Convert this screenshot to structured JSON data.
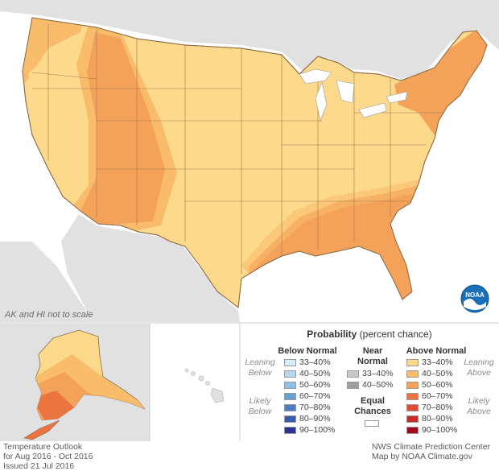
{
  "map_note": "AK and HI not to scale",
  "footer_left": [
    "Temperature Outlook",
    "for Aug 2016 - Oct 2016",
    "Issued 21 Jul 2016"
  ],
  "footer_right": [
    "NWS Climate Prediction Center",
    "Map by NOAA Climate.gov"
  ],
  "logo_text": "NOAA",
  "legend": {
    "title_bold": "Probability",
    "title_rest": " (percent chance)",
    "below_normal": {
      "heading": "Below Normal",
      "leaning": [
        "Leaning",
        "Below"
      ],
      "likely": [
        "Likely",
        "Below"
      ],
      "items": [
        {
          "label": "33–40%",
          "color": "#d7ecf8"
        },
        {
          "label": "40–50%",
          "color": "#b8d8ef"
        },
        {
          "label": "50–60%",
          "color": "#8fbfe3"
        },
        {
          "label": "60–70%",
          "color": "#6a9fd4"
        },
        {
          "label": "70–80%",
          "color": "#4f7ec2"
        },
        {
          "label": "80–90%",
          "color": "#3a5aab"
        },
        {
          "label": "90–100%",
          "color": "#2a3490"
        }
      ]
    },
    "near_normal": {
      "heading": [
        "Near",
        "Normal"
      ],
      "items": [
        {
          "label": "33–40%",
          "color": "#c8c8c8"
        },
        {
          "label": "40–50%",
          "color": "#9e9e9e"
        }
      ]
    },
    "equal_chances": {
      "label": [
        "Equal",
        "Chances"
      ],
      "color": "#ffffff"
    },
    "above_normal": {
      "heading": "Above Normal",
      "leaning": [
        "Leaning",
        "Above"
      ],
      "likely": [
        "Likely",
        "Above"
      ],
      "items": [
        {
          "label": "33–40%",
          "color": "#fdd98c"
        },
        {
          "label": "40–50%",
          "color": "#f8bc6a"
        },
        {
          "label": "50–60%",
          "color": "#f4a15a"
        },
        {
          "label": "60–70%",
          "color": "#ec7440"
        },
        {
          "label": "70–80%",
          "color": "#e04b33"
        },
        {
          "label": "80–90%",
          "color": "#c72c28"
        },
        {
          "label": "90–100%",
          "color": "#a00a1e"
        }
      ]
    }
  },
  "colors": {
    "land_other": "#e1e1e1",
    "water": "#ffffff",
    "above_33_40": "#fdd98c",
    "above_40_50": "#f8bc6a",
    "above_50_60": "#f4a15a",
    "above_60_70": "#ec7440",
    "borders": "#8a6a45",
    "noaa_blue": "#1a6fb8"
  }
}
